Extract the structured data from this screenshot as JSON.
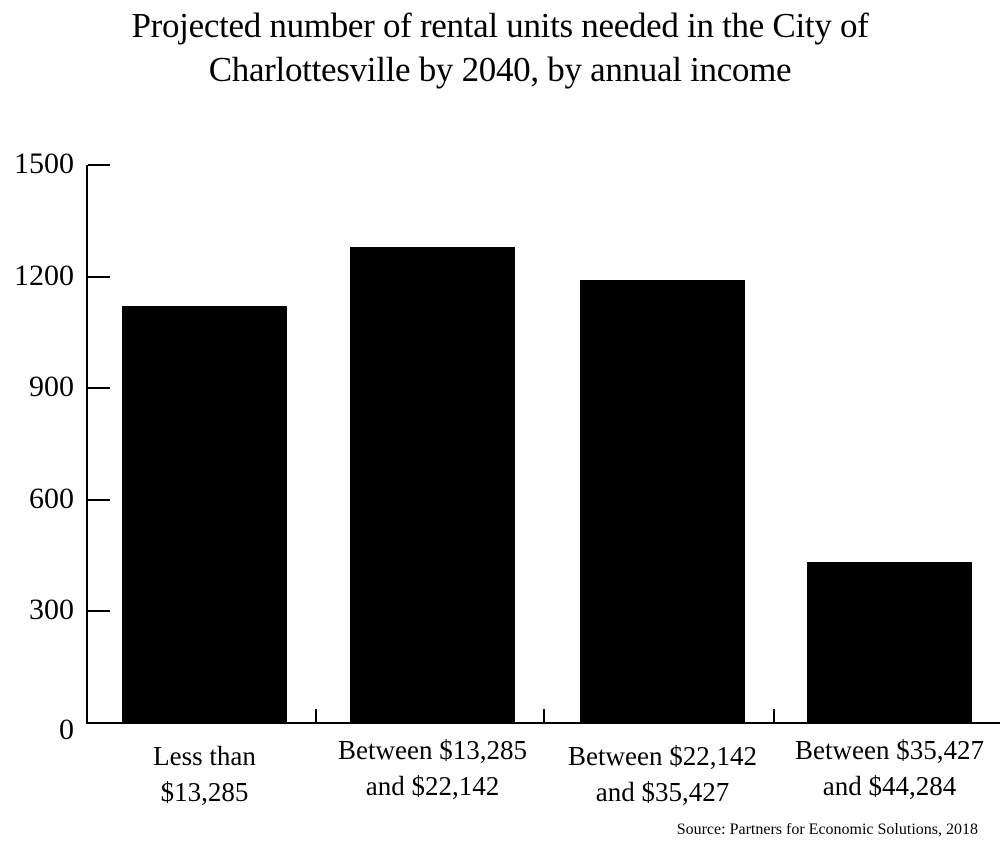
{
  "chart_data": {
    "type": "bar",
    "title": "Projected number of rental units needed in the City of Charlottesville by 2040, by annual income",
    "title_lines": [
      "Projected number of rental units needed in the City of",
      "Charlottesville by 2040, by annual income"
    ],
    "categories": [
      "Less than $13,285",
      "Between $13,285 and $22,142",
      "Between $22,142 and $35,427",
      "Between $35,427 and $44,284"
    ],
    "category_lines": [
      [
        "Less than",
        "$13,285"
      ],
      [
        "Between $13,285",
        "and $22,142"
      ],
      [
        "Between $22,142",
        "and $35,427"
      ],
      [
        "Between $35,427",
        "and $44,284"
      ]
    ],
    "values": [
      1120,
      1280,
      1190,
      432
    ],
    "xlabel": "",
    "ylabel": "",
    "ylim": [
      0,
      1500
    ],
    "yticks": [
      0,
      300,
      600,
      900,
      1200,
      1500
    ],
    "grid": false,
    "legend": null,
    "bar_color": "#000000",
    "source": "Source: Partners for Economic Solutions, 2018"
  }
}
